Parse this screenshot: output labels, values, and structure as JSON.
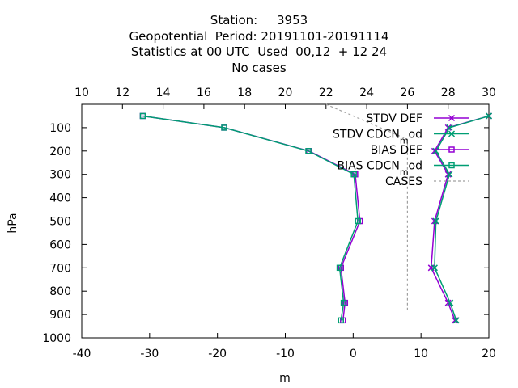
{
  "title_lines": [
    "Station:     3953",
    "Geopotential  Period: 20191101-20191114",
    "Statistics at 00 UTC  Used  00,12  + 12 24",
    "No cases"
  ],
  "chart_data": {
    "type": "line",
    "xlabel": "m",
    "ylabel": "hPa",
    "x_bottom_range": [
      -40,
      20
    ],
    "x_bottom_ticks": [
      "-40",
      "-30",
      "-20",
      "-10",
      "0",
      "10",
      "20"
    ],
    "x_top_range": [
      10,
      30
    ],
    "x_top_ticks": [
      "10",
      "12",
      "14",
      "16",
      "18",
      "20",
      "22",
      "24",
      "26",
      "28",
      "30"
    ],
    "y_range": [
      1000,
      0
    ],
    "y_ticks": [
      "100",
      "200",
      "300",
      "400",
      "500",
      "600",
      "700",
      "800",
      "900",
      "1000"
    ],
    "grid": false,
    "legend_position": "top-right",
    "series": [
      {
        "name": "STDV DEF",
        "color": "#9400d3",
        "marker": "x",
        "axis": "bottom",
        "points": [
          [
            20,
            50
          ],
          [
            14,
            100
          ],
          [
            12,
            200
          ],
          [
            14,
            300
          ],
          [
            12,
            500
          ],
          [
            11.5,
            700
          ],
          [
            14,
            850
          ],
          [
            15,
            925
          ]
        ]
      },
      {
        "name": "STDV CDCN_mod",
        "color": "#009e73",
        "marker": "x",
        "axis": "bottom",
        "points": [
          [
            20,
            50
          ],
          [
            14.2,
            100
          ],
          [
            12.2,
            200
          ],
          [
            14.2,
            300
          ],
          [
            12.2,
            500
          ],
          [
            12,
            700
          ],
          [
            14.3,
            850
          ],
          [
            15.2,
            925
          ]
        ]
      },
      {
        "name": "BIAS DEF",
        "color": "#9400d3",
        "marker": "square",
        "axis": "bottom",
        "points": [
          [
            -31,
            50
          ],
          [
            -19,
            100
          ],
          [
            -6.5,
            200
          ],
          [
            0.3,
            300
          ],
          [
            1,
            500
          ],
          [
            -1.8,
            700
          ],
          [
            -1.2,
            850
          ],
          [
            -1.5,
            925
          ]
        ]
      },
      {
        "name": "BIAS CDCN_mod",
        "color": "#009e73",
        "marker": "square",
        "axis": "bottom",
        "points": [
          [
            -31,
            50
          ],
          [
            -19,
            100
          ],
          [
            -6.6,
            200
          ],
          [
            0.1,
            300
          ],
          [
            0.7,
            500
          ],
          [
            -2,
            700
          ],
          [
            -1.4,
            850
          ],
          [
            -1.8,
            925
          ]
        ]
      },
      {
        "name": "CASES",
        "color": "#a0a0a0",
        "marker": "none",
        "dash": true,
        "axis": "top",
        "points": [
          [
            22,
            0
          ],
          [
            26,
            150
          ],
          [
            26,
            450
          ],
          [
            26,
            890
          ]
        ]
      }
    ]
  }
}
